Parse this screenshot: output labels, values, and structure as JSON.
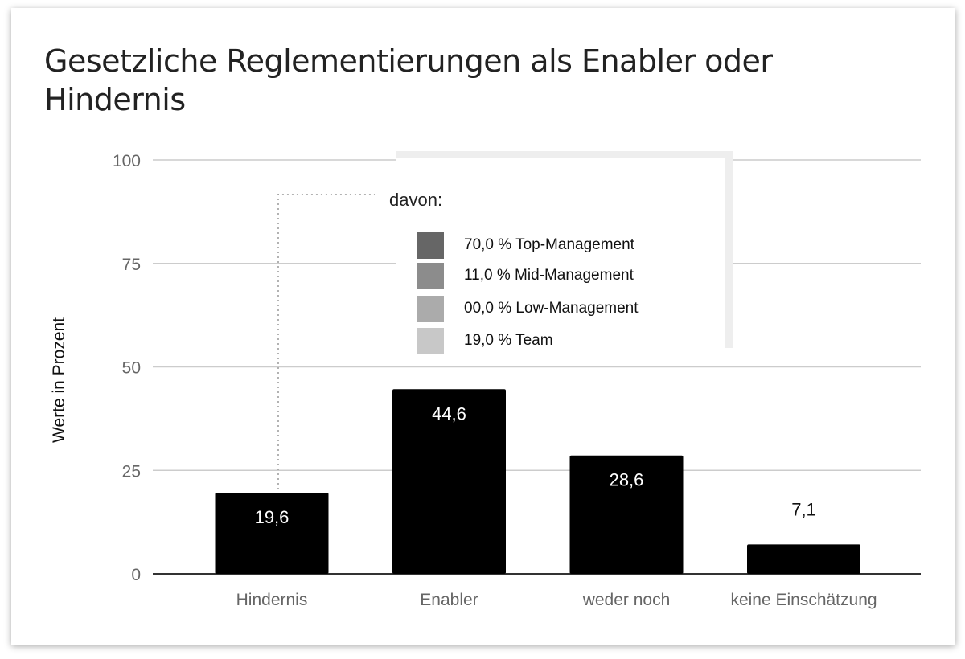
{
  "chart_data": {
    "type": "bar",
    "title": "Gesetzliche Reglementierungen als Enabler oder Hindernis",
    "ylabel": "Werte in Prozent",
    "xlabel": "",
    "categories": [
      "Hindernis",
      "Enabler",
      "weder noch",
      "keine Einschätzung"
    ],
    "values": [
      19.6,
      44.6,
      28.6,
      7.1
    ],
    "data_labels": [
      "19,6",
      "44,6",
      "28,6",
      "7,1"
    ],
    "ylim": [
      0,
      100
    ],
    "yticks": [
      0,
      25,
      50,
      75,
      100
    ],
    "grid": true,
    "bar_color": "#000000",
    "annotation": {
      "target_category": "Hindernis",
      "heading": "davon:",
      "items": [
        {
          "label": "70,0 % Top-Management",
          "color": "#666666"
        },
        {
          "label": "11,0 % Mid-Management",
          "color": "#8c8c8c"
        },
        {
          "label": "00,0 % Low-Management",
          "color": "#ababab"
        },
        {
          "label": "19,0 % Team",
          "color": "#c8c8c8"
        }
      ]
    }
  }
}
